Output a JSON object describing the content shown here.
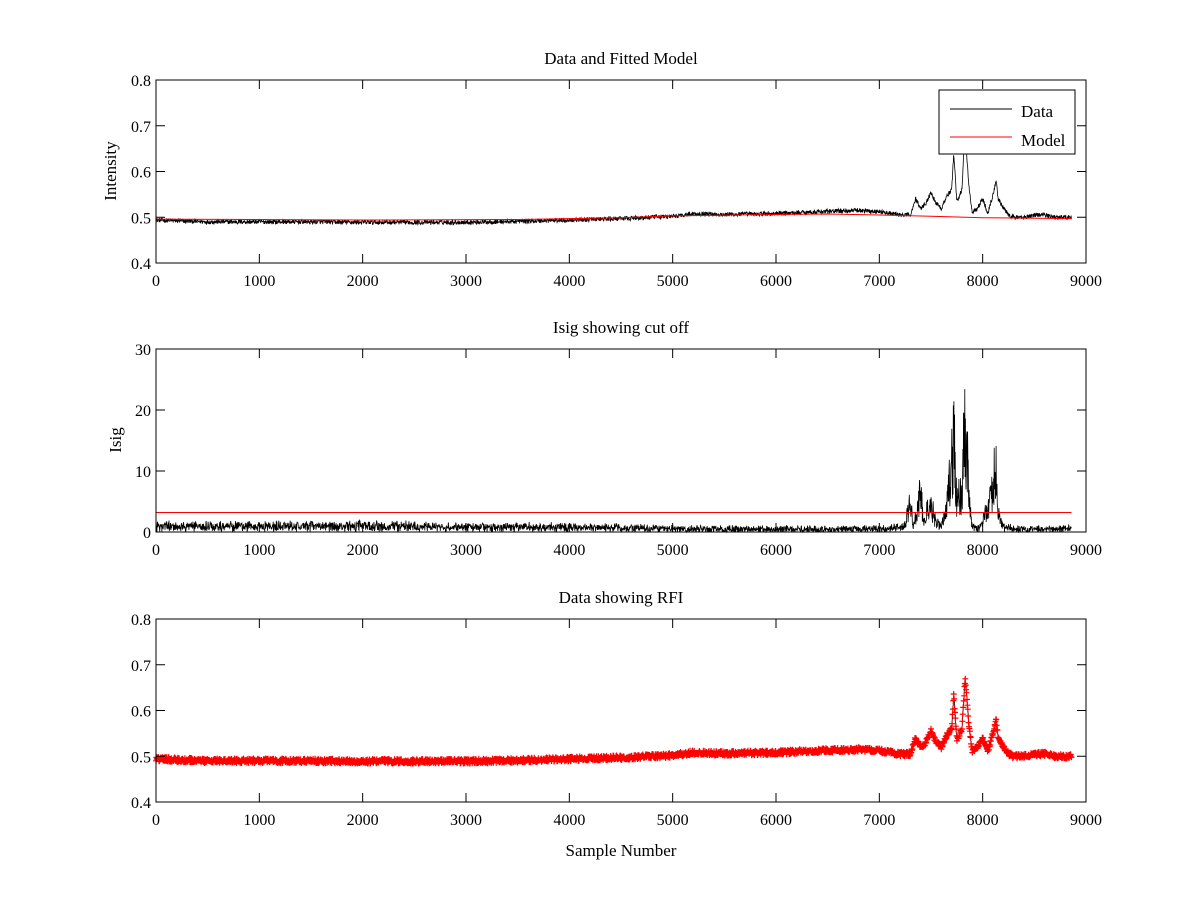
{
  "chart_data": [
    {
      "type": "line",
      "title": "Data and Fitted Model",
      "xlabel": "",
      "ylabel": "Intensity",
      "xlim": [
        0,
        9000
      ],
      "ylim": [
        0.4,
        0.8
      ],
      "xticks": [
        0,
        1000,
        2000,
        3000,
        4000,
        5000,
        6000,
        7000,
        8000,
        9000
      ],
      "yticks": [
        0.4,
        0.5,
        0.6,
        0.7,
        0.8
      ],
      "xticklabels": [
        "0",
        "1000",
        "2000",
        "3000",
        "4000",
        "5000",
        "6000",
        "7000",
        "8000",
        "9000"
      ],
      "yticklabels": [
        "0.4",
        "0.5",
        "0.6",
        "0.7",
        "0.8"
      ],
      "legend_position": "top-right",
      "legend": [
        "Data",
        "Model"
      ],
      "series": [
        {
          "name": "Data",
          "color": "#000000",
          "style": "noisy-line",
          "noise": 0.005,
          "x": [
            0,
            500,
            1000,
            1500,
            2000,
            2500,
            3000,
            3500,
            4000,
            4500,
            5000,
            5200,
            5500,
            6000,
            6500,
            6800,
            7000,
            7200,
            7300,
            7350,
            7400,
            7450,
            7500,
            7550,
            7600,
            7650,
            7700,
            7720,
            7750,
            7800,
            7830,
            7850,
            7870,
            7900,
            7950,
            8000,
            8050,
            8100,
            8130,
            8150,
            8200,
            8250,
            8300,
            8400,
            8500,
            8600,
            8700,
            8860
          ],
          "y": [
            0.494,
            0.49,
            0.49,
            0.49,
            0.489,
            0.489,
            0.489,
            0.491,
            0.494,
            0.497,
            0.502,
            0.508,
            0.506,
            0.508,
            0.513,
            0.515,
            0.512,
            0.505,
            0.505,
            0.54,
            0.52,
            0.53,
            0.555,
            0.53,
            0.52,
            0.545,
            0.56,
            0.64,
            0.535,
            0.56,
            0.7,
            0.62,
            0.56,
            0.51,
            0.52,
            0.54,
            0.51,
            0.55,
            0.58,
            0.54,
            0.52,
            0.505,
            0.5,
            0.5,
            0.505,
            0.505,
            0.5,
            0.5
          ]
        },
        {
          "name": "Model",
          "color": "#ff0000",
          "style": "line",
          "x": [
            0,
            2000,
            3500,
            4500,
            5000,
            6000,
            6500,
            7000,
            7500,
            8000,
            8860
          ],
          "y": [
            0.496,
            0.494,
            0.495,
            0.499,
            0.503,
            0.506,
            0.507,
            0.505,
            0.502,
            0.499,
            0.497
          ]
        }
      ]
    },
    {
      "type": "line",
      "title": "Isig showing cut off",
      "xlabel": "",
      "ylabel": "Isig",
      "xlim": [
        0,
        9000
      ],
      "ylim": [
        0,
        30
      ],
      "xticks": [
        0,
        1000,
        2000,
        3000,
        4000,
        5000,
        6000,
        7000,
        8000,
        9000
      ],
      "yticks": [
        0,
        10,
        20,
        30
      ],
      "xticklabels": [
        "0",
        "1000",
        "2000",
        "3000",
        "4000",
        "5000",
        "6000",
        "7000",
        "8000",
        "9000"
      ],
      "yticklabels": [
        "0",
        "10",
        "20",
        "30"
      ],
      "series": [
        {
          "color": "#000000",
          "style": "noisy-spiky",
          "noise": 0.9,
          "x": [
            0,
            1000,
            2000,
            2500,
            3000,
            3500,
            4000,
            5000,
            6000,
            7000,
            7250,
            7300,
            7330,
            7360,
            7400,
            7430,
            7460,
            7500,
            7550,
            7600,
            7650,
            7700,
            7720,
            7750,
            7800,
            7830,
            7850,
            7870,
            7900,
            7950,
            8000,
            8050,
            8100,
            8130,
            8150,
            8200,
            8300,
            8860
          ],
          "y": [
            1.0,
            1.0,
            1.1,
            1.0,
            0.9,
            0.9,
            0.8,
            0.6,
            0.5,
            0.5,
            1.0,
            5.5,
            1.0,
            3.0,
            7.0,
            1.5,
            3.5,
            5.0,
            2.0,
            1.0,
            4.0,
            12.0,
            17.0,
            6.0,
            7.0,
            21.0,
            13.0,
            5.0,
            1.0,
            0.5,
            2.0,
            4.0,
            9.0,
            10.5,
            3.0,
            1.0,
            0.5,
            0.5
          ]
        },
        {
          "color": "#ff0000",
          "style": "line",
          "x": [
            0,
            8860
          ],
          "y": [
            3.2,
            3.2
          ]
        }
      ]
    },
    {
      "type": "line",
      "title": "Data showing RFI",
      "xlabel": "Sample Number",
      "ylabel": "",
      "xlim": [
        0,
        9000
      ],
      "ylim": [
        0.4,
        0.8
      ],
      "xticks": [
        0,
        1000,
        2000,
        3000,
        4000,
        5000,
        6000,
        7000,
        8000,
        9000
      ],
      "yticks": [
        0.4,
        0.5,
        0.6,
        0.7,
        0.8
      ],
      "xticklabels": [
        "0",
        "1000",
        "2000",
        "3000",
        "4000",
        "5000",
        "6000",
        "7000",
        "8000",
        "9000"
      ],
      "yticklabels": [
        "0.4",
        "0.5",
        "0.6",
        "0.7",
        "0.8"
      ],
      "series": [
        {
          "color": "#000000",
          "style": "noisy-line",
          "noise": 0.005,
          "x": [
            0,
            500,
            1000,
            1500,
            2000,
            2500,
            3000,
            3500,
            4000,
            4500,
            5000,
            5200,
            5500,
            6000,
            6500,
            6800,
            7000,
            7200,
            7300,
            7350,
            7400,
            7450,
            7500,
            7550,
            7600,
            7650,
            7700,
            7720,
            7750,
            7800,
            7830,
            7850,
            7870,
            7900,
            7950,
            8000,
            8050,
            8100,
            8130,
            8150,
            8200,
            8250,
            8300,
            8400,
            8500,
            8600,
            8700,
            8860
          ],
          "y": [
            0.494,
            0.49,
            0.49,
            0.49,
            0.489,
            0.489,
            0.489,
            0.491,
            0.494,
            0.497,
            0.502,
            0.508,
            0.506,
            0.508,
            0.513,
            0.515,
            0.512,
            0.505,
            0.505,
            0.54,
            0.52,
            0.53,
            0.555,
            0.53,
            0.52,
            0.545,
            0.56,
            0.635,
            0.535,
            0.56,
            0.67,
            0.62,
            0.56,
            0.51,
            0.52,
            0.54,
            0.51,
            0.55,
            0.58,
            0.54,
            0.52,
            0.505,
            0.5,
            0.5,
            0.505,
            0.505,
            0.5,
            0.5
          ]
        },
        {
          "color": "#ff0000",
          "style": "markers",
          "marker": "+",
          "noise": 0.005,
          "x": [
            0,
            500,
            1000,
            1500,
            2000,
            2500,
            3000,
            3500,
            4000,
            4500,
            5000,
            5200,
            5500,
            6000,
            6500,
            6800,
            7000,
            7200,
            7300,
            7350,
            7400,
            7450,
            7500,
            7550,
            7600,
            7650,
            7700,
            7720,
            7750,
            7800,
            7830,
            7850,
            7870,
            7900,
            7950,
            8000,
            8050,
            8100,
            8130,
            8150,
            8200,
            8250,
            8300,
            8400,
            8500,
            8600,
            8700,
            8860
          ],
          "y": [
            0.494,
            0.49,
            0.49,
            0.49,
            0.489,
            0.489,
            0.489,
            0.491,
            0.494,
            0.497,
            0.502,
            0.508,
            0.506,
            0.508,
            0.513,
            0.515,
            0.512,
            0.505,
            0.505,
            0.54,
            0.52,
            0.53,
            0.555,
            0.53,
            0.52,
            0.545,
            0.56,
            0.635,
            0.535,
            0.56,
            0.67,
            0.62,
            0.56,
            0.51,
            0.52,
            0.54,
            0.51,
            0.55,
            0.58,
            0.54,
            0.52,
            0.505,
            0.5,
            0.5,
            0.505,
            0.505,
            0.5,
            0.5
          ]
        }
      ]
    }
  ]
}
